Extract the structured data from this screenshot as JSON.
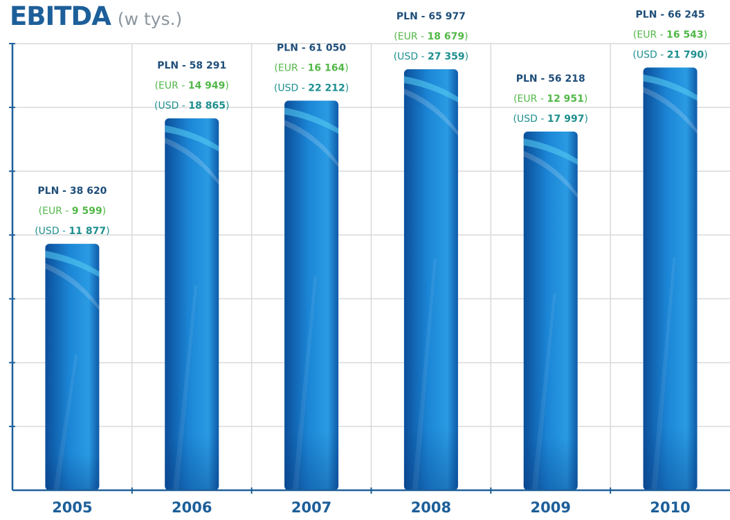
{
  "colors": {
    "title": "#1d5f99",
    "subtitle": "#8b969f",
    "pln": "#1f4e79",
    "eur": "#52b848",
    "usd": "#1e8f8f",
    "bar_dark": "#0b4f9a",
    "bar_mid": "#1c86d6",
    "bar_light": "#5ad0f2",
    "grid": "#d9d9d9",
    "axis": "#1d5f99"
  },
  "chart_data": {
    "type": "bar",
    "title": "EBITDA",
    "subtitle": "(w tys.)",
    "categories": [
      "2005",
      "2006",
      "2007",
      "2008",
      "2009",
      "2010"
    ],
    "series": [
      {
        "name": "PLN",
        "values": [
          38620,
          58291,
          61050,
          65977,
          56218,
          66245
        ]
      }
    ],
    "annotations": [
      {
        "pln": "38 620",
        "eur": "9 599",
        "usd": "11 877"
      },
      {
        "pln": "58 291",
        "eur": "14 949",
        "usd": "18 865"
      },
      {
        "pln": "61 050",
        "eur": "16 164",
        "usd": "22 212"
      },
      {
        "pln": "65 977",
        "eur": "18 679",
        "usd": "27 359"
      },
      {
        "pln": "56 218",
        "eur": "12 951",
        "usd": "17 997"
      },
      {
        "pln": "66 245",
        "eur": "16 543",
        "usd": "21 790"
      }
    ],
    "labels": {
      "pln_prefix": "PLN - ",
      "eur_prefix": "(EUR - ",
      "usd_prefix": "(USD - ",
      "suffix": ")"
    },
    "ylim": [
      0,
      70000
    ],
    "grid": true,
    "xlabel": "",
    "ylabel": ""
  }
}
